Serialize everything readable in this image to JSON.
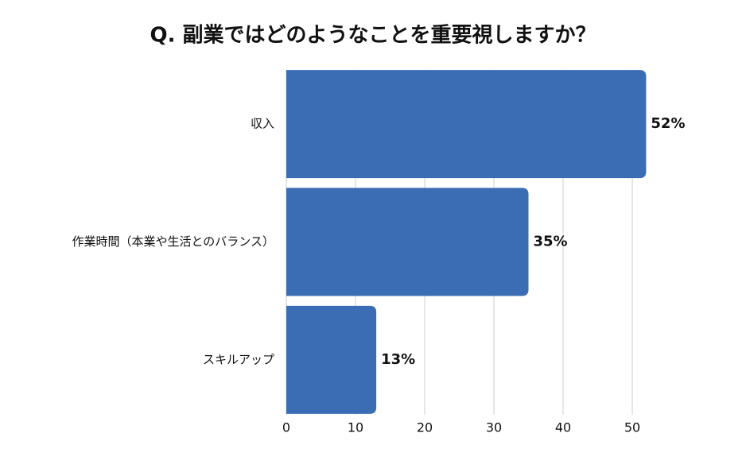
{
  "chart_data": {
    "type": "hbar",
    "title": "Q. 副業ではどのようなことを重要視しますか？",
    "categories": [
      "収入",
      "作業時間（本業や生活とのバランス）",
      "スキルアップ"
    ],
    "values": [
      52,
      35,
      13
    ],
    "value_labels": [
      "52%",
      "35%",
      "13%"
    ],
    "color": "#3a6db3",
    "xlim": [
      0,
      50
    ],
    "xticks": [
      0,
      10,
      20,
      30,
      40,
      50
    ],
    "grid": true
  }
}
